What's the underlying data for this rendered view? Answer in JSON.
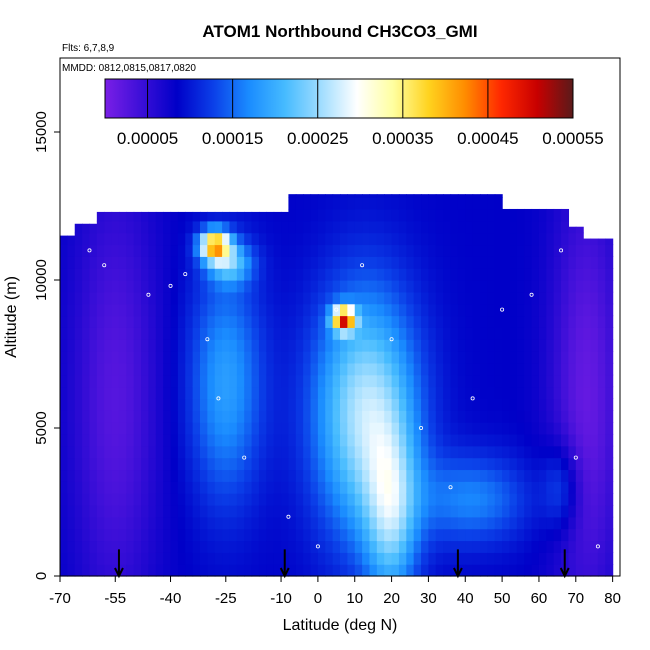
{
  "chart_data": {
    "type": "heatmap",
    "title": "ATOM1 Northbound CH3CO3_GMI",
    "flights_label": "Flts: 6,7,8,9",
    "dates_label": "MMDD: 0812,0815,0817,0820",
    "xlabel": "Latitude (deg N)",
    "ylabel": "Altitude (m)",
    "xlim": [
      -70,
      82
    ],
    "ylim": [
      0,
      17500
    ],
    "x_ticks": [
      -70,
      -55,
      -40,
      -25,
      -10,
      0,
      10,
      20,
      30,
      40,
      50,
      60,
      70,
      80
    ],
    "y_ticks": [
      0,
      5000,
      10000,
      15000
    ],
    "colorbar": {
      "range": [
        0,
        0.00055
      ],
      "tick_values": [
        5e-05,
        0.00015,
        0.00025,
        0.00035,
        0.00045,
        0.00055
      ],
      "tick_labels": [
        "0.00005",
        "0.00015",
        "0.00025",
        "0.00035",
        "0.00045",
        "0.00055"
      ],
      "colors": [
        "#7a1fe6",
        "#3c0fd8",
        "#0000c8",
        "#0b3fe8",
        "#1a8cff",
        "#46bbff",
        "#a0ddff",
        "#ffffff",
        "#ffffa0",
        "#ffd21e",
        "#ff8c00",
        "#ff2800",
        "#c80000",
        "#5a1a1a"
      ]
    },
    "flight_markers_latitude": [
      -54,
      -9,
      38,
      67
    ],
    "observation_points": [
      {
        "lat": -66,
        "alt": 12500
      },
      {
        "lat": -62,
        "alt": 11000
      },
      {
        "lat": -58,
        "alt": 10500
      },
      {
        "lat": -46,
        "alt": 9500
      },
      {
        "lat": -40,
        "alt": 9800
      },
      {
        "lat": -36,
        "alt": 10200
      },
      {
        "lat": -30,
        "alt": 8000
      },
      {
        "lat": -27,
        "alt": 6000
      },
      {
        "lat": -20,
        "alt": 4000
      },
      {
        "lat": -8,
        "alt": 2000
      },
      {
        "lat": 0,
        "alt": 1000
      },
      {
        "lat": 5,
        "alt": 9000
      },
      {
        "lat": 12,
        "alt": 10500
      },
      {
        "lat": 20,
        "alt": 8000
      },
      {
        "lat": 28,
        "alt": 5000
      },
      {
        "lat": 36,
        "alt": 3000
      },
      {
        "lat": 42,
        "alt": 6000
      },
      {
        "lat": 50,
        "alt": 9000
      },
      {
        "lat": 58,
        "alt": 9500
      },
      {
        "lat": 66,
        "alt": 11000
      },
      {
        "lat": 70,
        "alt": 4000
      },
      {
        "lat": 76,
        "alt": 1000
      }
    ]
  }
}
